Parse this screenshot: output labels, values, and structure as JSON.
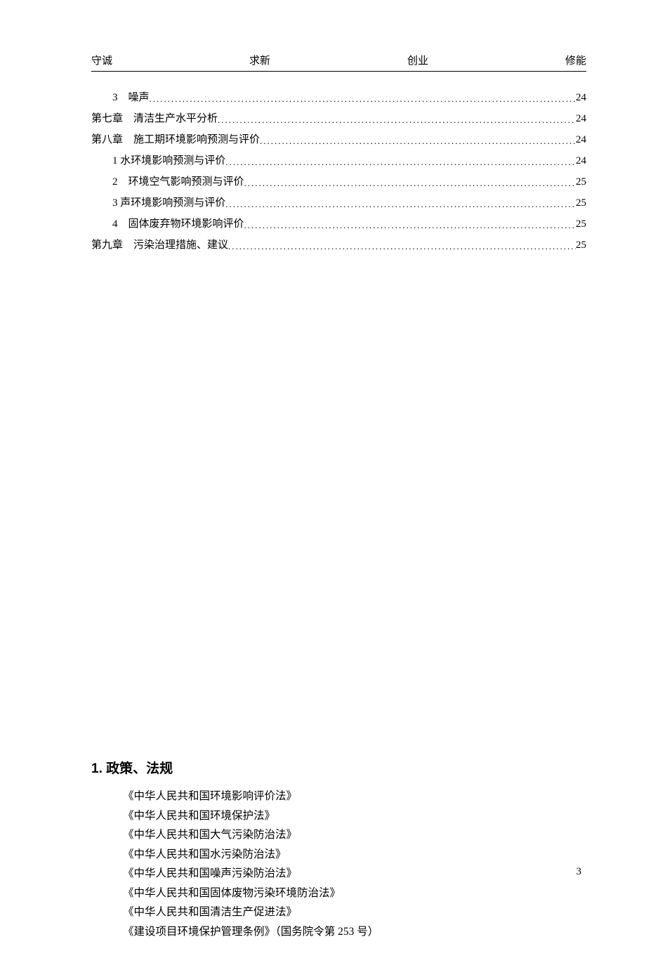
{
  "header": {
    "m1": "守诚",
    "m2": "求新",
    "m3": "创业",
    "m4": "修能"
  },
  "toc": [
    {
      "indent": 1,
      "label": "3　噪声",
      "page": "24"
    },
    {
      "indent": 0,
      "label": "第七章　清洁生产水平分析",
      "page": "24"
    },
    {
      "indent": 0,
      "label": "第八章　施工期环境影响预测与评价",
      "page": "24"
    },
    {
      "indent": 1,
      "label": "1  水环境影响预测与评价",
      "page": "24"
    },
    {
      "indent": 1,
      "label": "2　环境空气影响预测与评价",
      "page": "25"
    },
    {
      "indent": 1,
      "label": "3 声环境影响预测与评价",
      "page": "25"
    },
    {
      "indent": 1,
      "label": "4　固体废弃物环境影响评价",
      "page": "25"
    },
    {
      "indent": 0,
      "label": "第九章　污染治理措施、建议",
      "page": "25"
    }
  ],
  "section": {
    "heading": "1.  政策、法规",
    "items": [
      "《中华人民共和国环境影响评价法》",
      "《中华人民共和国环境保护法》",
      "《中华人民共和国大气污染防治法》",
      "《中华人民共和国水污染防治法》",
      "《中华人民共和国噪声污染防治法》",
      "《中华人民共和国固体废物污染环境防治法》",
      "《中华人民共和国清洁生产促进法》",
      "《建设项目环境保护管理条例》（国务院令第 253 号）"
    ]
  },
  "pageNumber": "3"
}
